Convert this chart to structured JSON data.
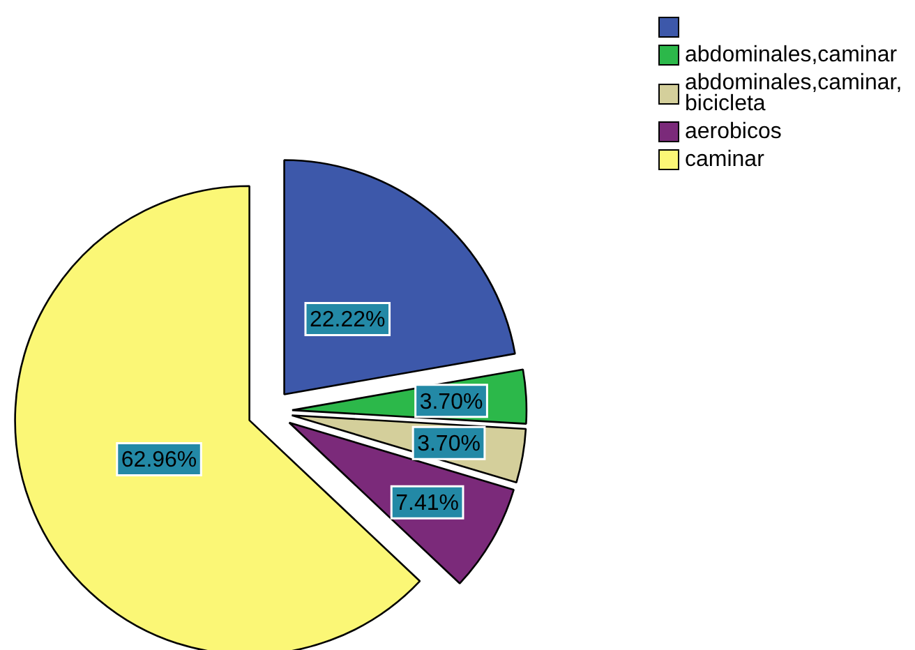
{
  "chart_data": {
    "type": "pie",
    "categories": [
      null,
      "abdominales,caminar",
      "abdominales,caminar, bicicleta",
      "aerobicos",
      "caminar"
    ],
    "values": [
      22.22,
      3.7,
      3.7,
      7.41,
      62.96
    ],
    "colors": [
      "#3d58aa",
      "#2cb84a",
      "#d4cf9b",
      "#7b2a7a",
      "#fbf776"
    ],
    "value_labels": [
      "22.22%",
      "3.70%",
      "3.70%",
      "7.41%",
      "62.96%"
    ],
    "legend": "top right"
  }
}
